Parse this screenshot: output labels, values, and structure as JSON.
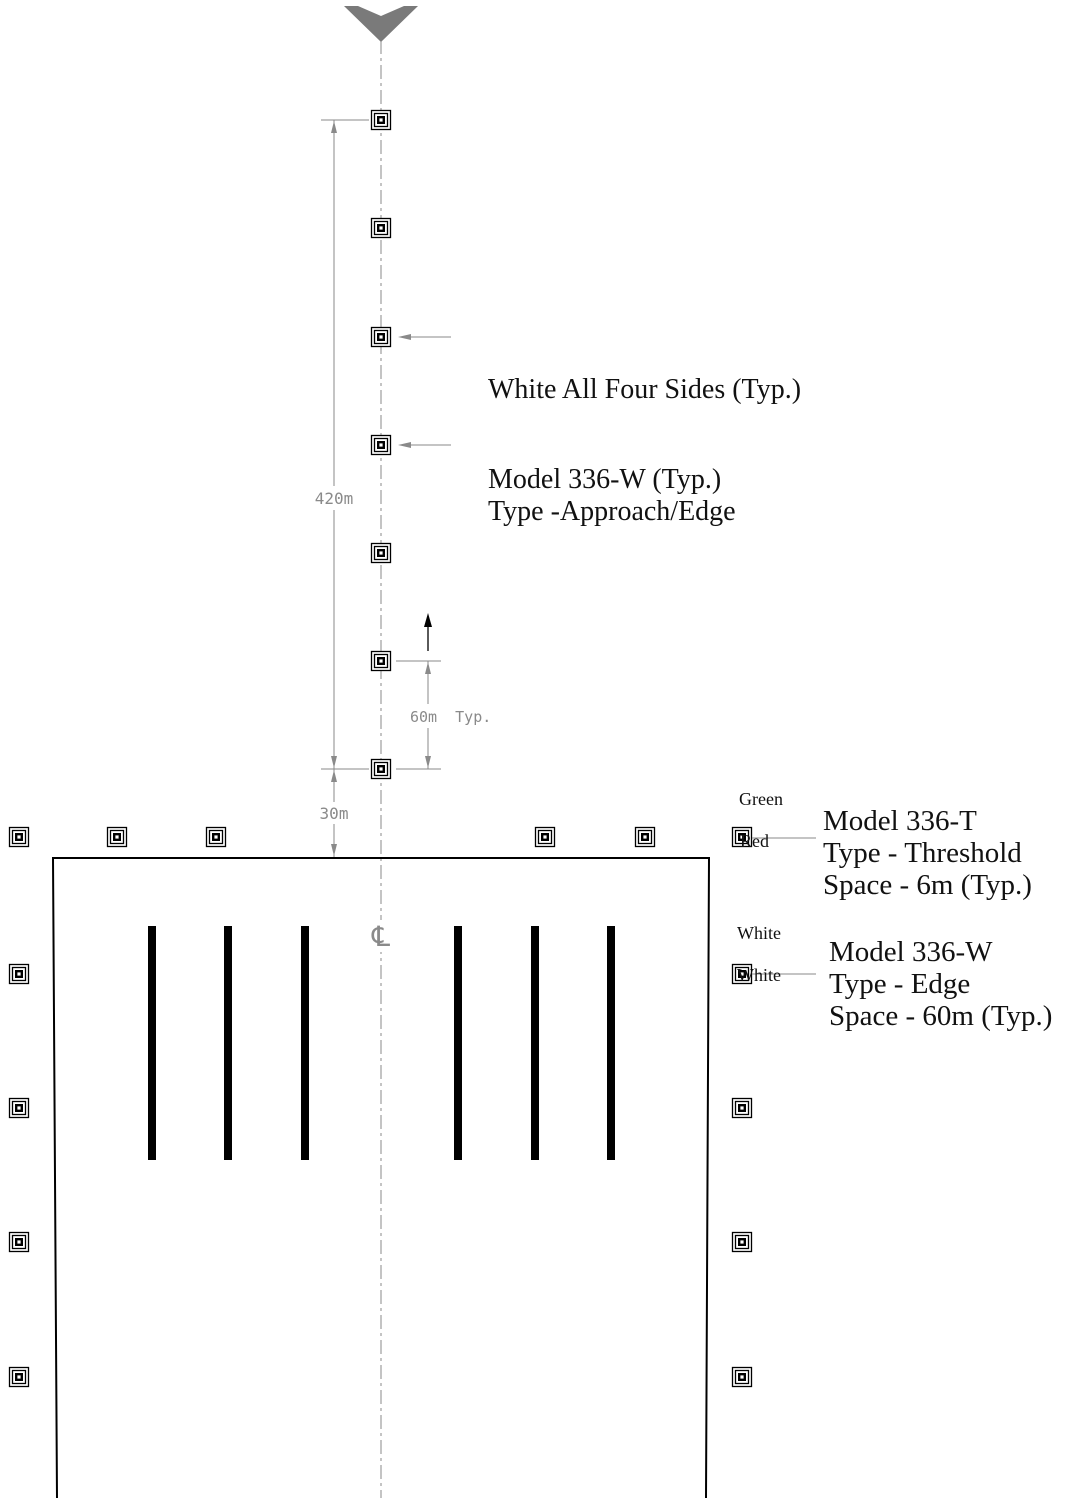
{
  "colors": {
    "line": "#000000",
    "dimension": "#8a8a8a",
    "centerline": "#8a8a8a",
    "arrow_head": "#7a7a7a",
    "background": "#ffffff"
  },
  "icons": {
    "light_fixture": "light-fixture-icon",
    "approach_arrow": "chevron-down-icon",
    "centerline_symbol": "centerline-symbol-icon",
    "direction_arrow": "arrow-up-icon"
  },
  "diagram": {
    "dimensions": {
      "total_approach": "420m",
      "typical_spacing": "60m  Typ.",
      "threshold_offset": "30m"
    },
    "centerline_symbol": "℄",
    "approach_lights": {
      "callout_sides": "White All Four Sides (Typ.)",
      "model_line1": "Model 336-W (Typ.)",
      "model_line2": "Type -Approach/Edge",
      "count": 7
    },
    "threshold_lights": {
      "color_top": "Green",
      "color_bottom": "Red",
      "model": "Model 336-T",
      "type": "Type - Threshold",
      "space": "Space - 6m (Typ.)"
    },
    "edge_lights": {
      "color_top": "White",
      "color_bottom": "White",
      "model": "Model 336-W",
      "type": "Type - Edge",
      "space": "Space - 60m (Typ.)"
    },
    "threshold_bar_count": 6
  }
}
